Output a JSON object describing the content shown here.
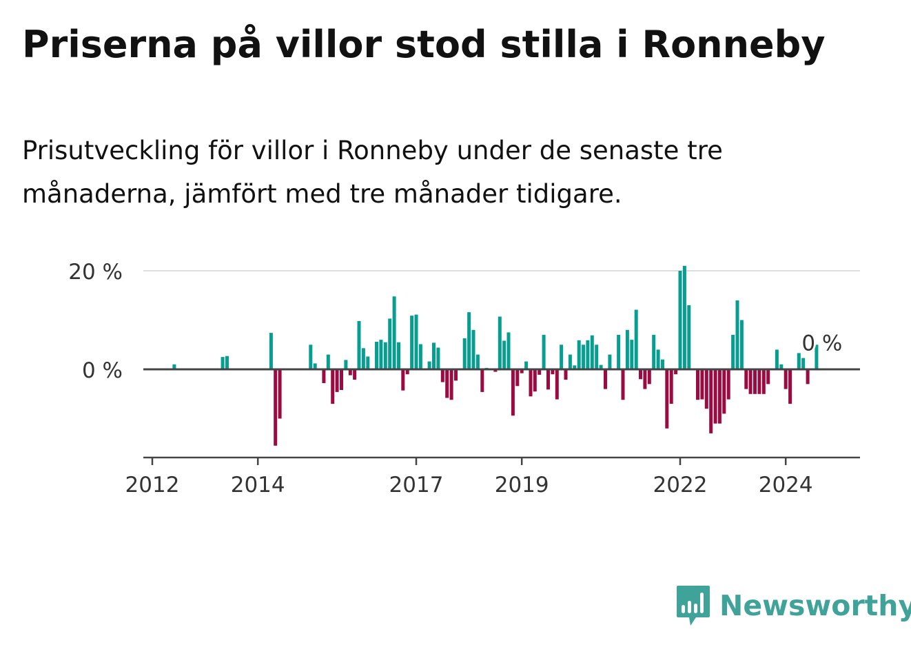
{
  "title": "Priserna på villor stod stilla i Ronneby",
  "subtitle": "Prisutveckling för villor i Ronneby under de senaste tre månaderna, jämfört med tre månader tidigare.",
  "brand": {
    "name": "Newsworthy",
    "logo_icon": "bar-chart-speech-bubble-icon"
  },
  "colors": {
    "positive": "#079e92",
    "negative": "#9b0b42",
    "grid": "#dddddd",
    "axis": "#444444",
    "brand": "#3fa39a"
  },
  "chart_data": {
    "type": "bar",
    "x_start": "2012-01",
    "x_end": "2024-12",
    "x_ticks": [
      "2012",
      "2014",
      "2017",
      "2019",
      "2022",
      "2024"
    ],
    "y_ticks": [
      "20 %",
      "0 %"
    ],
    "ylim": [
      -18,
      20
    ],
    "grid": true,
    "last_value_label": "0 %",
    "series": [
      {
        "values": [
          {
            "x": "2012-06",
            "y": 1
          },
          {
            "x": "2013-05",
            "y": 2.5
          },
          {
            "x": "2013-06",
            "y": 2.7
          },
          {
            "x": "2014-04",
            "y": 7.4
          },
          {
            "x": "2014-05",
            "y": -15.5
          },
          {
            "x": "2014-06",
            "y": -10
          },
          {
            "x": "2015-01",
            "y": 5
          },
          {
            "x": "2015-02",
            "y": 1.2
          },
          {
            "x": "2015-04",
            "y": -2.8
          },
          {
            "x": "2015-05",
            "y": 3
          },
          {
            "x": "2015-06",
            "y": -7
          },
          {
            "x": "2015-07",
            "y": -4.6
          },
          {
            "x": "2015-08",
            "y": -4.2
          },
          {
            "x": "2015-09",
            "y": 1.9
          },
          {
            "x": "2015-10",
            "y": -1.2
          },
          {
            "x": "2015-11",
            "y": -2.1
          },
          {
            "x": "2015-12",
            "y": 9.8
          },
          {
            "x": "2016-01",
            "y": 4.3
          },
          {
            "x": "2016-02",
            "y": 2.6
          },
          {
            "x": "2016-04",
            "y": 5.6
          },
          {
            "x": "2016-05",
            "y": 6
          },
          {
            "x": "2016-06",
            "y": 5.5
          },
          {
            "x": "2016-07",
            "y": 10.3
          },
          {
            "x": "2016-08",
            "y": 14.8
          },
          {
            "x": "2016-09",
            "y": 5.5
          },
          {
            "x": "2016-10",
            "y": -4.3
          },
          {
            "x": "2016-11",
            "y": -1
          },
          {
            "x": "2016-12",
            "y": 10.9
          },
          {
            "x": "2017-01",
            "y": 11.1
          },
          {
            "x": "2017-02",
            "y": 5.1
          },
          {
            "x": "2017-04",
            "y": 1.6
          },
          {
            "x": "2017-05",
            "y": 5.4
          },
          {
            "x": "2017-06",
            "y": 4.4
          },
          {
            "x": "2017-07",
            "y": -2.6
          },
          {
            "x": "2017-08",
            "y": -5.8
          },
          {
            "x": "2017-09",
            "y": -6.2
          },
          {
            "x": "2017-10",
            "y": -2.3
          },
          {
            "x": "2017-12",
            "y": 6.3
          },
          {
            "x": "2018-01",
            "y": 11.6
          },
          {
            "x": "2018-02",
            "y": 8
          },
          {
            "x": "2018-03",
            "y": 3
          },
          {
            "x": "2018-04",
            "y": -4.6
          },
          {
            "x": "2018-05",
            "y": 0.3
          },
          {
            "x": "2018-07",
            "y": -0.5
          },
          {
            "x": "2018-08",
            "y": 10.7
          },
          {
            "x": "2018-09",
            "y": 5.8
          },
          {
            "x": "2018-10",
            "y": 7.5
          },
          {
            "x": "2018-11",
            "y": -9.4
          },
          {
            "x": "2018-12",
            "y": -3.4
          },
          {
            "x": "2019-01",
            "y": -0.8
          },
          {
            "x": "2019-02",
            "y": 1.6
          },
          {
            "x": "2019-03",
            "y": -5.5
          },
          {
            "x": "2019-04",
            "y": -4.5
          },
          {
            "x": "2019-05",
            "y": -1.1
          },
          {
            "x": "2019-06",
            "y": 7
          },
          {
            "x": "2019-07",
            "y": -4.1
          },
          {
            "x": "2019-08",
            "y": -1
          },
          {
            "x": "2019-09",
            "y": -6.1
          },
          {
            "x": "2019-10",
            "y": 5
          },
          {
            "x": "2019-11",
            "y": -2.1
          },
          {
            "x": "2019-12",
            "y": 3
          },
          {
            "x": "2020-01",
            "y": 0.8
          },
          {
            "x": "2020-02",
            "y": 5.9
          },
          {
            "x": "2020-03",
            "y": 5
          },
          {
            "x": "2020-04",
            "y": 5.9
          },
          {
            "x": "2020-05",
            "y": 6.9
          },
          {
            "x": "2020-06",
            "y": 5
          },
          {
            "x": "2020-07",
            "y": 0.9
          },
          {
            "x": "2020-08",
            "y": -4
          },
          {
            "x": "2020-09",
            "y": 3
          },
          {
            "x": "2020-11",
            "y": 7
          },
          {
            "x": "2020-12",
            "y": -6.2
          },
          {
            "x": "2021-01",
            "y": 8
          },
          {
            "x": "2021-02",
            "y": 6
          },
          {
            "x": "2021-03",
            "y": 12.1
          },
          {
            "x": "2021-04",
            "y": -2
          },
          {
            "x": "2021-05",
            "y": -4
          },
          {
            "x": "2021-06",
            "y": -3
          },
          {
            "x": "2021-07",
            "y": 7
          },
          {
            "x": "2021-08",
            "y": 4
          },
          {
            "x": "2021-09",
            "y": 2
          },
          {
            "x": "2021-10",
            "y": -12
          },
          {
            "x": "2021-11",
            "y": -7
          },
          {
            "x": "2021-12",
            "y": -1
          },
          {
            "x": "2022-01",
            "y": 20
          },
          {
            "x": "2022-02",
            "y": 21
          },
          {
            "x": "2022-03",
            "y": 13
          },
          {
            "x": "2022-05",
            "y": -6.2
          },
          {
            "x": "2022-06",
            "y": -6.1
          },
          {
            "x": "2022-07",
            "y": -8
          },
          {
            "x": "2022-08",
            "y": -13
          },
          {
            "x": "2022-09",
            "y": -11
          },
          {
            "x": "2022-10",
            "y": -11
          },
          {
            "x": "2022-11",
            "y": -9
          },
          {
            "x": "2022-12",
            "y": -6.1
          },
          {
            "x": "2023-01",
            "y": 7
          },
          {
            "x": "2023-02",
            "y": 14
          },
          {
            "x": "2023-03",
            "y": 10
          },
          {
            "x": "2023-04",
            "y": -4
          },
          {
            "x": "2023-05",
            "y": -5
          },
          {
            "x": "2023-06",
            "y": -5
          },
          {
            "x": "2023-07",
            "y": -5
          },
          {
            "x": "2023-08",
            "y": -5
          },
          {
            "x": "2023-09",
            "y": -3
          },
          {
            "x": "2023-11",
            "y": 4
          },
          {
            "x": "2023-12",
            "y": 1
          },
          {
            "x": "2024-01",
            "y": -4
          },
          {
            "x": "2024-02",
            "y": -7
          },
          {
            "x": "2024-04",
            "y": 3.3
          },
          {
            "x": "2024-05",
            "y": 2.3
          },
          {
            "x": "2024-06",
            "y": -3
          },
          {
            "x": "2024-08",
            "y": 5
          }
        ]
      }
    ]
  }
}
